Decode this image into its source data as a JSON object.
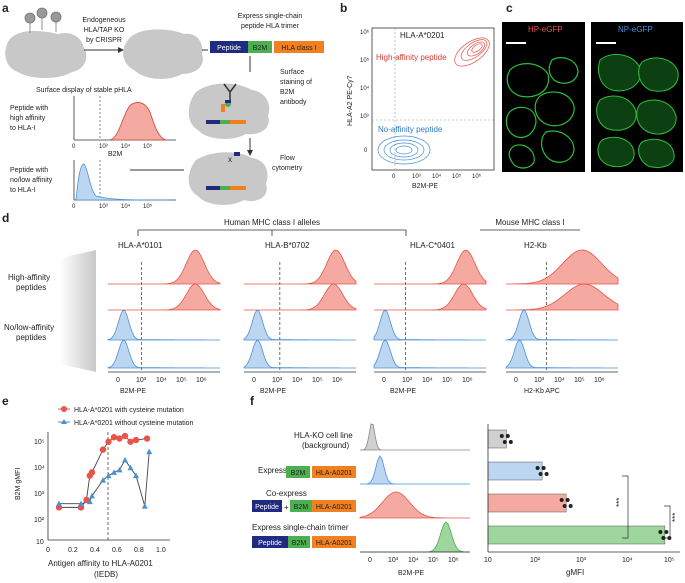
{
  "panels": {
    "a": "a",
    "b": "b",
    "c": "c",
    "d": "d",
    "e": "e",
    "f": "f"
  },
  "a": {
    "ko_line1": "Endogeneous",
    "ko_line2": "HLA/TAP KO",
    "ko_line3": "by CRISPR",
    "express_line1": "Express single-chain",
    "express_line2": "peptide HLA trimer",
    "construct": {
      "peptide": "Peptide",
      "b2m": "B2M",
      "hla": "HLA class I"
    },
    "surface_title": "Surface display of stable pHLA",
    "staining_line1": "Surface",
    "staining_line2": "staining of",
    "staining_line3": "B2M",
    "staining_line4": "antibody",
    "flow_line1": "Flow",
    "flow_line2": "cytometry",
    "high_line1": "Peptide with",
    "high_line2": "high affinity",
    "high_line3": "to HLA-I",
    "low_line1": "Peptide with",
    "low_line2": "no/low affinity",
    "low_line3": "to HLA-I",
    "axis_label": "B2M",
    "ticks": [
      "0",
      "10³",
      "10⁴",
      "10⁵"
    ]
  },
  "b": {
    "title": "HLA-A*0201",
    "high_label": "High-affinity peptide",
    "no_label": "No-affinity peptide",
    "ylabel": "HLA-A2 PE-Cy7",
    "xlabel": "B2M-PE",
    "xticks": [
      "0",
      "10³",
      "10⁴",
      "10⁵",
      "10⁶"
    ],
    "yticks": [
      "10⁶",
      "10⁵",
      "10⁴",
      "10³",
      "0"
    ]
  },
  "c": {
    "hp": "HP-eGFP",
    "np": "NP-eGFP"
  },
  "d": {
    "human_header": "Human MHC class I alleles",
    "mouse_header": "Mouse MHC class I",
    "alleles": [
      "HLA-A*0101",
      "HLA-B*0702",
      "HLA-C*0401",
      "H2-Kb"
    ],
    "row_high_1": "High-affinity",
    "row_high_2": "peptides",
    "row_low_1": "No/low-affinity",
    "row_low_2": "peptides",
    "xlabels": [
      "B2M-PE",
      "B2M-PE",
      "B2M-PE",
      "H2-Kb APC"
    ],
    "xticks": [
      "0",
      "10³",
      "10⁴",
      "10⁵",
      "10⁶"
    ]
  },
  "e": {
    "legend_red": "HLA-A*0201 with cysteine mutation",
    "legend_blue": "HLA-A*0201 without cysteine mutation",
    "ylabel": "B2M gMFI",
    "xlabel_1": "Antigen affinity to HLA-A0201",
    "xlabel_2": "(IEDB)",
    "xticks": [
      "0",
      "0.2",
      "0.4",
      "0.6",
      "0.8",
      "1.0"
    ],
    "yticks": [
      "10⁵",
      "10⁴",
      "10³",
      "10²",
      "10"
    ]
  },
  "f": {
    "row1_1": "HLA-KO cell line",
    "row1_2": "(background)",
    "row2_label": "Express",
    "row3_label": "Co-express",
    "row4_label": "Express single-chain trimer",
    "peptide": "Peptide",
    "b2m": "B2M",
    "hla": "HLA-A0201",
    "plus": "+",
    "hist_xlabel": "B2M-PE",
    "hist_ticks": [
      "0",
      "10³",
      "10⁴",
      "10⁵",
      "10⁶"
    ],
    "bar_xlabel": "gMFI",
    "bar_ticks": [
      "10",
      "10²",
      "10³",
      "10⁴",
      "10⁵"
    ],
    "sig1": "***",
    "sig2": "***"
  },
  "colors": {
    "red": "#e8534a",
    "blue": "#4a90d9",
    "green": "#4caf50",
    "navy": "#1f2a80",
    "orange": "#f08020",
    "gray": "#c8c8c8"
  }
}
